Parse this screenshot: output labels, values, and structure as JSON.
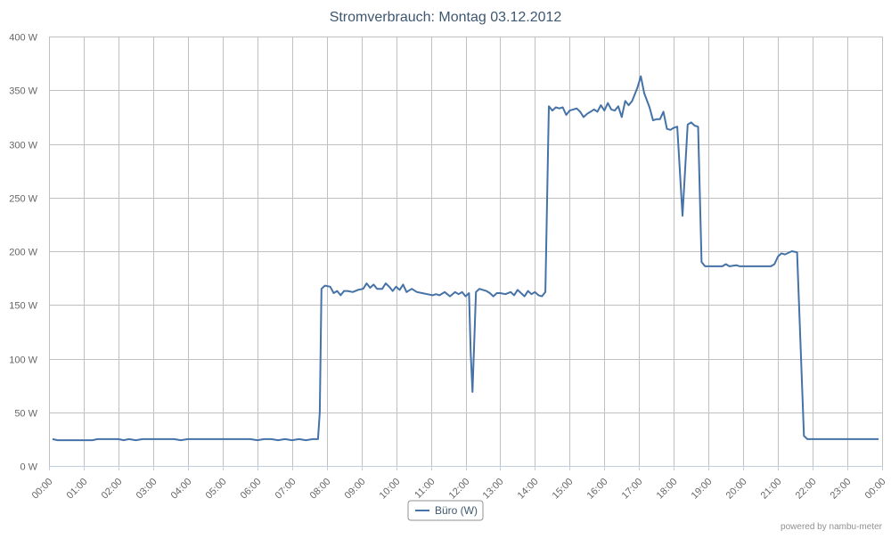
{
  "chart_data": {
    "type": "line",
    "title": "Stromverbrauch: Montag 03.12.2012",
    "xlabel": "",
    "ylabel": "",
    "x_range_hours": [
      0,
      24
    ],
    "ylim": [
      0,
      400
    ],
    "y_ticks": [
      "0 W",
      "50 W",
      "100 W",
      "150 W",
      "200 W",
      "250 W",
      "300 W",
      "350 W",
      "400 W"
    ],
    "y_tick_values": [
      0,
      50,
      100,
      150,
      200,
      250,
      300,
      350,
      400
    ],
    "x_ticks": [
      "00:00",
      "01:00",
      "02:00",
      "03:00",
      "04:00",
      "05:00",
      "06:00",
      "07:00",
      "08:00",
      "09:00",
      "10:00",
      "11:00",
      "12:00",
      "13:00",
      "14:00",
      "15:00",
      "16:00",
      "17:00",
      "18:00",
      "19:00",
      "20:00",
      "21:00",
      "22:00",
      "23:00",
      "00:00"
    ],
    "grid": true,
    "legend_position": "bottom-center",
    "series": [
      {
        "name": "Büro (W)",
        "color": "#4572a7",
        "points": [
          [
            0.1,
            25
          ],
          [
            0.25,
            24
          ],
          [
            0.5,
            24
          ],
          [
            0.75,
            24
          ],
          [
            1.0,
            24
          ],
          [
            1.25,
            24
          ],
          [
            1.4,
            25
          ],
          [
            1.6,
            25
          ],
          [
            1.8,
            25
          ],
          [
            2.0,
            25
          ],
          [
            2.15,
            24
          ],
          [
            2.3,
            25
          ],
          [
            2.5,
            24
          ],
          [
            2.7,
            25
          ],
          [
            3.0,
            25
          ],
          [
            3.3,
            25
          ],
          [
            3.6,
            25
          ],
          [
            3.8,
            24
          ],
          [
            4.0,
            25
          ],
          [
            4.5,
            25
          ],
          [
            5.0,
            25
          ],
          [
            5.5,
            25
          ],
          [
            5.8,
            25
          ],
          [
            6.0,
            24
          ],
          [
            6.2,
            25
          ],
          [
            6.4,
            25
          ],
          [
            6.6,
            24
          ],
          [
            6.8,
            25
          ],
          [
            7.0,
            24
          ],
          [
            7.2,
            25
          ],
          [
            7.4,
            24
          ],
          [
            7.6,
            25
          ],
          [
            7.75,
            25
          ],
          [
            7.8,
            50
          ],
          [
            7.85,
            165
          ],
          [
            7.95,
            168
          ],
          [
            8.1,
            167
          ],
          [
            8.2,
            161
          ],
          [
            8.3,
            163
          ],
          [
            8.4,
            159
          ],
          [
            8.5,
            163
          ],
          [
            8.6,
            163
          ],
          [
            8.75,
            162
          ],
          [
            8.9,
            164
          ],
          [
            9.05,
            165
          ],
          [
            9.15,
            170
          ],
          [
            9.25,
            166
          ],
          [
            9.35,
            169
          ],
          [
            9.45,
            165
          ],
          [
            9.6,
            165
          ],
          [
            9.7,
            170
          ],
          [
            9.8,
            167
          ],
          [
            9.9,
            163
          ],
          [
            10.0,
            167
          ],
          [
            10.1,
            164
          ],
          [
            10.2,
            169
          ],
          [
            10.3,
            162
          ],
          [
            10.45,
            165
          ],
          [
            10.6,
            162
          ],
          [
            10.75,
            161
          ],
          [
            10.9,
            160
          ],
          [
            11.05,
            159
          ],
          [
            11.15,
            160
          ],
          [
            11.25,
            159
          ],
          [
            11.4,
            162
          ],
          [
            11.55,
            158
          ],
          [
            11.7,
            162
          ],
          [
            11.8,
            160
          ],
          [
            11.9,
            162
          ],
          [
            12.0,
            158
          ],
          [
            12.1,
            161
          ],
          [
            12.15,
            105
          ],
          [
            12.2,
            69
          ],
          [
            12.3,
            162
          ],
          [
            12.4,
            165
          ],
          [
            12.5,
            164
          ],
          [
            12.6,
            163
          ],
          [
            12.7,
            161
          ],
          [
            12.8,
            158
          ],
          [
            12.9,
            161
          ],
          [
            13.0,
            161
          ],
          [
            13.15,
            160
          ],
          [
            13.3,
            162
          ],
          [
            13.4,
            159
          ],
          [
            13.5,
            164
          ],
          [
            13.6,
            161
          ],
          [
            13.7,
            158
          ],
          [
            13.8,
            163
          ],
          [
            13.9,
            160
          ],
          [
            14.0,
            162
          ],
          [
            14.1,
            159
          ],
          [
            14.2,
            158
          ],
          [
            14.3,
            162
          ],
          [
            14.4,
            335
          ],
          [
            14.5,
            331
          ],
          [
            14.6,
            334
          ],
          [
            14.7,
            333
          ],
          [
            14.8,
            334
          ],
          [
            14.9,
            327
          ],
          [
            15.0,
            331
          ],
          [
            15.1,
            332
          ],
          [
            15.2,
            333
          ],
          [
            15.3,
            330
          ],
          [
            15.4,
            325
          ],
          [
            15.5,
            328
          ],
          [
            15.6,
            330
          ],
          [
            15.7,
            332
          ],
          [
            15.8,
            330
          ],
          [
            15.9,
            336
          ],
          [
            16.0,
            331
          ],
          [
            16.1,
            338
          ],
          [
            16.2,
            332
          ],
          [
            16.3,
            331
          ],
          [
            16.4,
            335
          ],
          [
            16.5,
            325
          ],
          [
            16.6,
            340
          ],
          [
            16.7,
            336
          ],
          [
            16.8,
            340
          ],
          [
            16.95,
            352
          ],
          [
            17.05,
            363
          ],
          [
            17.15,
            347
          ],
          [
            17.3,
            334
          ],
          [
            17.4,
            322
          ],
          [
            17.5,
            323
          ],
          [
            17.6,
            323
          ],
          [
            17.7,
            330
          ],
          [
            17.8,
            314
          ],
          [
            17.9,
            313
          ],
          [
            18.0,
            315
          ],
          [
            18.1,
            316
          ],
          [
            18.25,
            233
          ],
          [
            18.4,
            318
          ],
          [
            18.5,
            320
          ],
          [
            18.6,
            317
          ],
          [
            18.7,
            316
          ],
          [
            18.8,
            190
          ],
          [
            18.9,
            186
          ],
          [
            19.0,
            186
          ],
          [
            19.2,
            186
          ],
          [
            19.4,
            186
          ],
          [
            19.5,
            188
          ],
          [
            19.6,
            186
          ],
          [
            19.8,
            187
          ],
          [
            19.9,
            186
          ],
          [
            20.0,
            186
          ],
          [
            20.3,
            186
          ],
          [
            20.6,
            186
          ],
          [
            20.8,
            186
          ],
          [
            20.9,
            188
          ],
          [
            21.0,
            195
          ],
          [
            21.1,
            198
          ],
          [
            21.2,
            197
          ],
          [
            21.4,
            200
          ],
          [
            21.55,
            199
          ],
          [
            21.75,
            28
          ],
          [
            21.85,
            25
          ],
          [
            22.0,
            25
          ],
          [
            22.2,
            25
          ],
          [
            22.5,
            25
          ],
          [
            23.0,
            25
          ],
          [
            23.5,
            25
          ],
          [
            23.9,
            25
          ]
        ]
      }
    ]
  },
  "credit": "powered by nambu-meter"
}
